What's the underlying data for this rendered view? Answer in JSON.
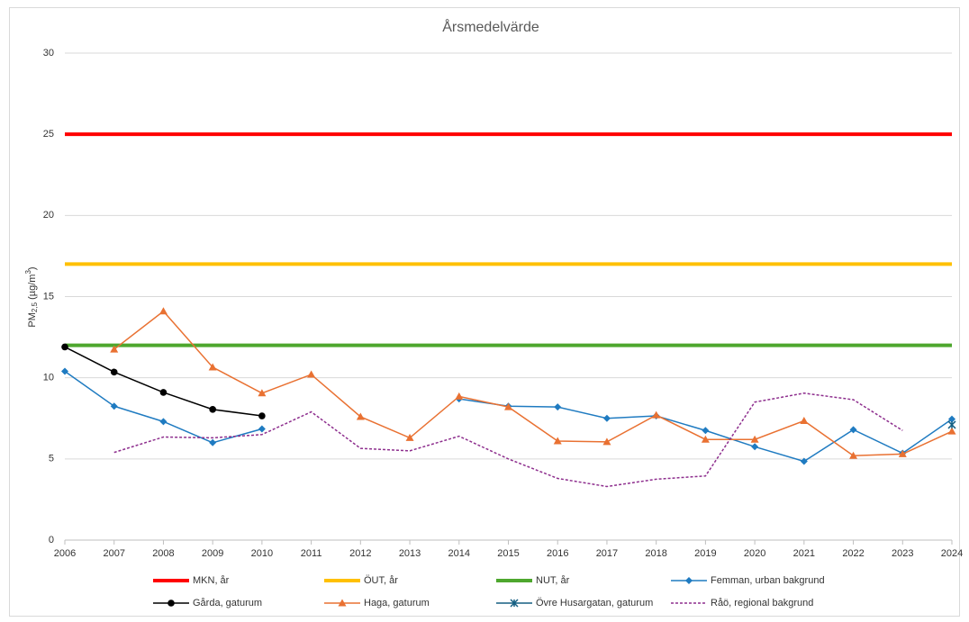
{
  "chart_data": {
    "type": "line",
    "title": "Årsmedelvärde",
    "y_label": {
      "base": "PM",
      "sub": "2,5",
      "unit": " (µg/m",
      "sup": "3",
      "end": ")"
    },
    "x": [
      2006,
      2007,
      2008,
      2009,
      2010,
      2011,
      2012,
      2013,
      2014,
      2015,
      2016,
      2017,
      2018,
      2019,
      2020,
      2021,
      2022,
      2023,
      2024
    ],
    "xlim": [
      2006,
      2024
    ],
    "xticks": [
      2006,
      2007,
      2008,
      2009,
      2010,
      2011,
      2012,
      2013,
      2014,
      2015,
      2016,
      2017,
      2018,
      2019,
      2020,
      2021,
      2022,
      2023,
      2024
    ],
    "ylim": [
      0,
      30
    ],
    "yticks": [
      0,
      5,
      10,
      15,
      20,
      25,
      30
    ],
    "grid": true,
    "legend": "bottom",
    "series": [
      {
        "name": "MKN, år",
        "color": "#ff0000",
        "width": 4,
        "marker": "none",
        "dash": "solid",
        "values": [
          25,
          25,
          25,
          25,
          25,
          25,
          25,
          25,
          25,
          25,
          25,
          25,
          25,
          25,
          25,
          25,
          25,
          25,
          25
        ]
      },
      {
        "name": "ÖUT, år",
        "color": "#ffc000",
        "width": 4,
        "marker": "none",
        "dash": "solid",
        "values": [
          17,
          17,
          17,
          17,
          17,
          17,
          17,
          17,
          17,
          17,
          17,
          17,
          17,
          17,
          17,
          17,
          17,
          17,
          17
        ]
      },
      {
        "name": "NUT, år",
        "color": "#4ea72e",
        "width": 4,
        "marker": "none",
        "dash": "solid",
        "values": [
          12,
          12,
          12,
          12,
          12,
          12,
          12,
          12,
          12,
          12,
          12,
          12,
          12,
          12,
          12,
          12,
          12,
          12,
          12
        ]
      },
      {
        "name": "Femman, urban bakgrund",
        "color": "#1f7bc1",
        "width": 1.5,
        "marker": "diamond",
        "dash": "solid",
        "values": [
          10.4,
          8.25,
          7.3,
          6.0,
          6.85,
          null,
          null,
          null,
          8.7,
          8.25,
          8.2,
          7.5,
          7.65,
          6.75,
          5.75,
          4.85,
          6.8,
          5.35,
          7.45
        ]
      },
      {
        "name": "Gårda, gaturum",
        "color": "#000000",
        "width": 1.5,
        "marker": "circle",
        "dash": "solid",
        "values": [
          11.9,
          10.35,
          9.1,
          8.05,
          7.65,
          null,
          null,
          null,
          null,
          null,
          null,
          null,
          null,
          null,
          null,
          null,
          null,
          null,
          null
        ]
      },
      {
        "name": "Haga, gaturum",
        "color": "#e97132",
        "width": 1.5,
        "marker": "triangle",
        "dash": "solid",
        "values": [
          null,
          11.75,
          14.1,
          10.65,
          9.05,
          10.2,
          7.6,
          6.3,
          8.85,
          8.2,
          6.1,
          6.05,
          7.7,
          6.2,
          6.2,
          7.35,
          5.2,
          5.3,
          6.7
        ]
      },
      {
        "name": "Övre Husargatan, gaturum",
        "color": "#155f82",
        "width": 1.5,
        "marker": "star",
        "dash": "solid",
        "values": [
          null,
          null,
          null,
          null,
          null,
          null,
          null,
          null,
          null,
          null,
          null,
          null,
          null,
          null,
          null,
          null,
          null,
          null,
          7.1
        ]
      },
      {
        "name": "Råö, regional bakgrund",
        "color": "#8e2f8e",
        "width": 1.5,
        "marker": "none",
        "dash": "dotted",
        "values": [
          null,
          5.4,
          6.35,
          6.3,
          6.5,
          7.9,
          5.65,
          5.5,
          6.4,
          5.0,
          3.8,
          3.3,
          3.75,
          3.95,
          8.5,
          9.05,
          8.65,
          6.75,
          null
        ]
      }
    ]
  }
}
